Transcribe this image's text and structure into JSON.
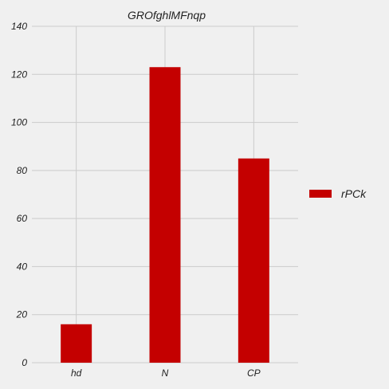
{
  "chart_data": {
    "type": "bar",
    "title": "GROfghlMFnqp",
    "xlabel": "",
    "ylabel": "",
    "categories": [
      "hd",
      "N",
      "CP"
    ],
    "series": [
      {
        "name": "rPCk",
        "values": [
          16,
          123,
          85
        ],
        "color": "#c40000"
      }
    ],
    "ylim": [
      0,
      140
    ],
    "yticks": [
      0,
      20,
      40,
      60,
      80,
      100,
      120,
      140
    ],
    "grid": true,
    "legend_position": "right"
  }
}
